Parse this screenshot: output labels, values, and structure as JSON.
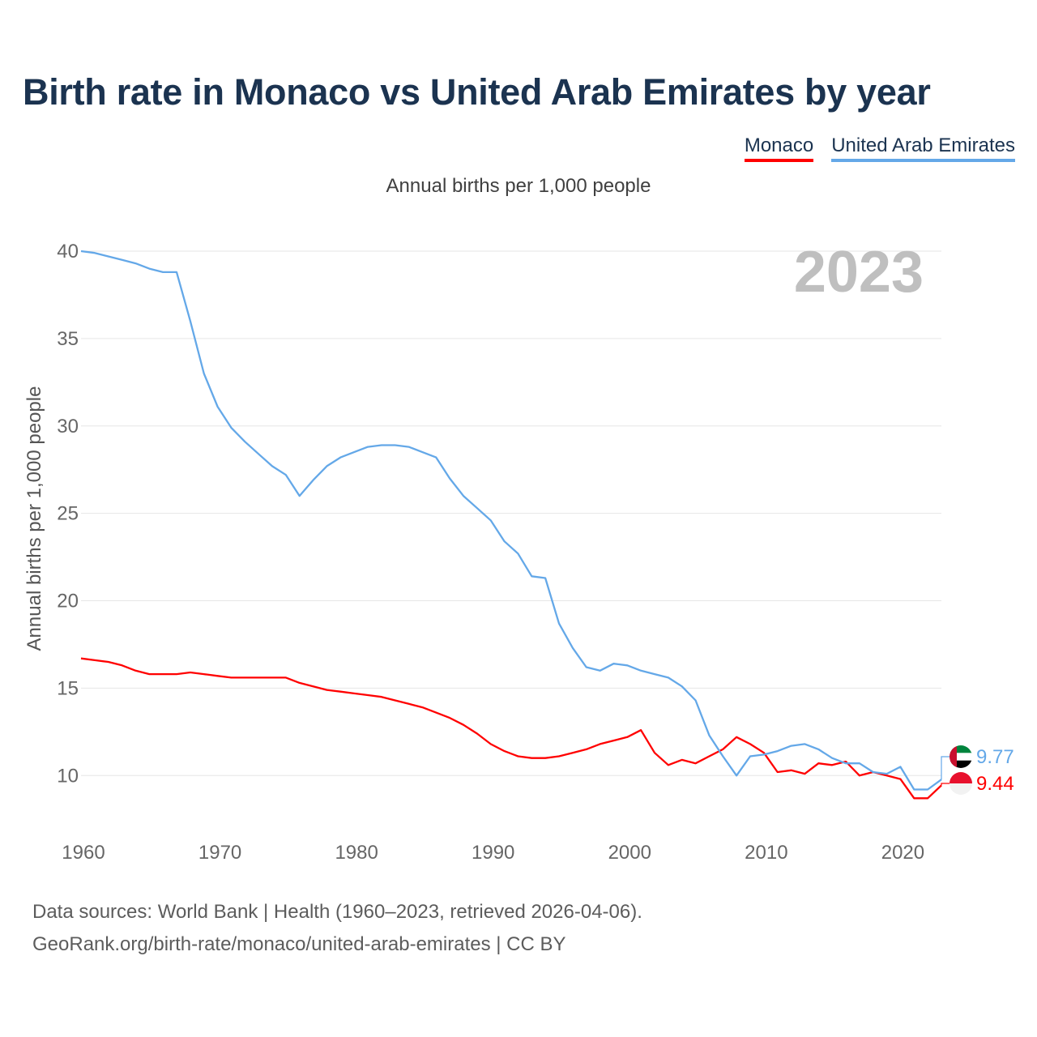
{
  "title": "Birth rate in Monaco vs United Arab Emirates by year",
  "legend": {
    "monaco": "Monaco",
    "uae": "United Arab Emirates"
  },
  "subtitle": "Annual births per 1,000 people",
  "footer": {
    "line1": "Data sources: World Bank | Health (1960–2023, retrieved 2026-04-06).",
    "line2": "GeoRank.org/birth-rate/monaco/united-arab-emirates | CC BY"
  },
  "colors": {
    "monaco": "#ff0000",
    "uae": "#64a8e8",
    "grid": "#e6e6e6",
    "axis_text": "#666666",
    "year": "#bfbfbf"
  },
  "chart_data": {
    "type": "line",
    "title": "Birth rate in Monaco vs United Arab Emirates by year",
    "ylabel": "Annual births per 1,000 people",
    "xlabel": "",
    "year_label": "2023",
    "xlim": [
      1960,
      2023
    ],
    "ylim": [
      7,
      40
    ],
    "x_ticks": [
      1960,
      1970,
      1980,
      1990,
      2000,
      2010,
      2020
    ],
    "y_ticks": [
      10,
      15,
      20,
      25,
      30,
      35,
      40
    ],
    "x": [
      1960,
      1961,
      1962,
      1963,
      1964,
      1965,
      1966,
      1967,
      1968,
      1969,
      1970,
      1971,
      1972,
      1973,
      1974,
      1975,
      1976,
      1977,
      1978,
      1979,
      1980,
      1981,
      1982,
      1983,
      1984,
      1985,
      1986,
      1987,
      1988,
      1989,
      1990,
      1991,
      1992,
      1993,
      1994,
      1995,
      1996,
      1997,
      1998,
      1999,
      2000,
      2001,
      2002,
      2003,
      2004,
      2005,
      2006,
      2007,
      2008,
      2009,
      2010,
      2011,
      2012,
      2013,
      2014,
      2015,
      2016,
      2017,
      2018,
      2019,
      2020,
      2021,
      2022,
      2023
    ],
    "series": [
      {
        "name": "Monaco",
        "end_label": "9.44",
        "values": [
          16.7,
          16.6,
          16.5,
          16.3,
          16.0,
          15.8,
          15.8,
          15.8,
          15.9,
          15.8,
          15.7,
          15.6,
          15.6,
          15.6,
          15.6,
          15.6,
          15.3,
          15.1,
          14.9,
          14.8,
          14.7,
          14.6,
          14.5,
          14.3,
          14.1,
          13.9,
          13.6,
          13.3,
          12.9,
          12.4,
          11.8,
          11.4,
          11.1,
          11.0,
          11.0,
          11.1,
          11.3,
          11.5,
          11.8,
          12.0,
          12.2,
          12.6,
          11.3,
          10.6,
          10.9,
          10.7,
          11.1,
          11.5,
          12.2,
          11.8,
          11.3,
          10.2,
          10.3,
          10.1,
          10.7,
          10.6,
          10.8,
          10.0,
          10.2,
          10.0,
          9.8,
          8.7,
          8.7,
          9.44
        ]
      },
      {
        "name": "United Arab Emirates",
        "end_label": "9.77",
        "values": [
          40.0,
          39.9,
          39.7,
          39.5,
          39.3,
          39.0,
          38.8,
          38.8,
          36.0,
          33.0,
          31.1,
          29.9,
          29.1,
          28.4,
          27.7,
          27.2,
          26.0,
          26.9,
          27.7,
          28.2,
          28.5,
          28.8,
          28.9,
          28.9,
          28.8,
          28.5,
          28.2,
          27.0,
          26.0,
          25.3,
          24.6,
          23.4,
          22.7,
          21.4,
          21.3,
          18.7,
          17.3,
          16.2,
          16.0,
          16.4,
          16.3,
          16.0,
          15.8,
          15.6,
          15.1,
          14.3,
          12.3,
          11.1,
          10.0,
          11.1,
          11.2,
          11.4,
          11.7,
          11.8,
          11.5,
          11.0,
          10.7,
          10.7,
          10.2,
          10.1,
          10.5,
          9.2,
          9.2,
          9.77
        ]
      }
    ]
  }
}
